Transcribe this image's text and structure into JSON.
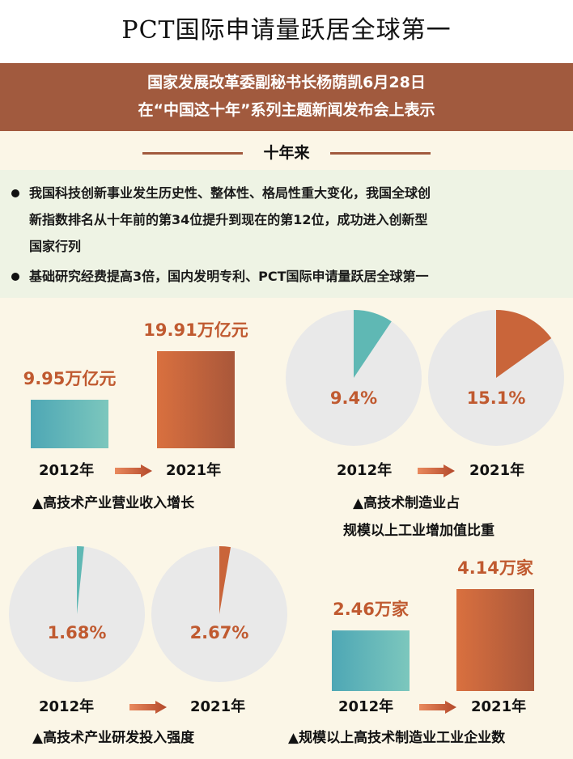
{
  "title": "PCT国际申请量跃居全球第一",
  "banner": {
    "line1": "国家发展改革委副秘书长杨荫凯6月28日",
    "line2": "在“中国这十年”系列主题新闻发布会上表示"
  },
  "heading": "十年来",
  "bullets": [
    {
      "line1": "我国科技创新事业发生历史性、整体性、格局性重大变化，我国全球创",
      "line2": "新指数排名从十年前的第34位提升到现在的第12位，成功进入创新型",
      "line3": "国家行列"
    },
    {
      "line1": "基础研究经费提高3倍，国内发明专利、PCT国际申请量跃居全球第一"
    }
  ],
  "colors": {
    "teal": "#5fb8b4",
    "orange": "#c9653a",
    "pie_bg": "#e9e9e9",
    "banner": "#a15a3e",
    "value_text": "#c05a30"
  },
  "chart_data": [
    {
      "type": "bar",
      "categories": [
        "2012年",
        "2021年"
      ],
      "values": [
        9.95,
        19.91
      ],
      "labels": [
        "9.95万亿元",
        "19.91万亿元"
      ],
      "unit": "万亿元",
      "caption": "▲高技术产业营业收入增长"
    },
    {
      "type": "pie",
      "categories": [
        "2012年",
        "2021年"
      ],
      "values": [
        9.4,
        15.1
      ],
      "labels": [
        "9.4%",
        "15.1%"
      ],
      "unit": "%",
      "caption_line1": "▲高技术制造业占",
      "caption_line2": "规模以上工业增加值比重"
    },
    {
      "type": "pie",
      "categories": [
        "2012年",
        "2021年"
      ],
      "values": [
        1.68,
        2.67
      ],
      "labels": [
        "1.68%",
        "2.67%"
      ],
      "unit": "%",
      "caption": "▲高技术产业研发投入强度"
    },
    {
      "type": "bar",
      "categories": [
        "2012年",
        "2021年"
      ],
      "values": [
        2.46,
        4.14
      ],
      "labels": [
        "2.46万家",
        "4.14万家"
      ],
      "unit": "万家",
      "caption": "▲规模以上高技术制造业工业企业数"
    }
  ]
}
